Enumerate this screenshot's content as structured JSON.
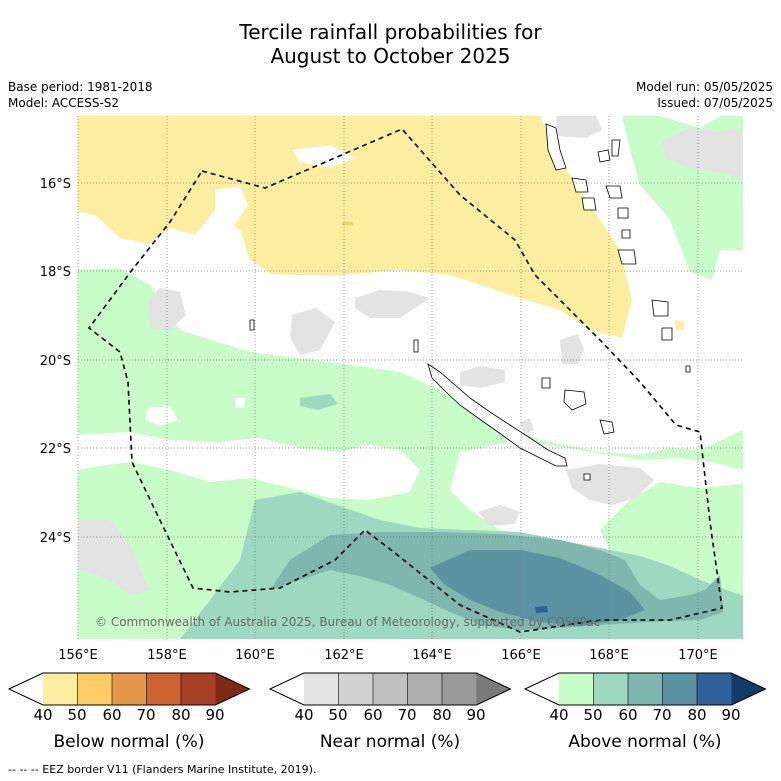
{
  "title_line1": "Tercile rainfall probabilities for",
  "title_line2": "August to October 2025",
  "meta_left": [
    "Base period: 1981-2018",
    "Model: ACCESS-S2"
  ],
  "meta_right": [
    "Model run: 05/05/2025",
    "Issued: 07/05/2025"
  ],
  "map": {
    "lon_ticks": [
      "156°E",
      "158°E",
      "160°E",
      "162°E",
      "164°E",
      "166°E",
      "168°E",
      "170°E"
    ],
    "lat_ticks": [
      "16°S",
      "18°S",
      "20°S",
      "22°S",
      "24°S"
    ],
    "copyright": "© Commonwealth of Australia 2025, Bureau of Meteorology, supported by COSPPac"
  },
  "legends": [
    {
      "title": "Below normal (%)",
      "ticks": [
        "40",
        "50",
        "60",
        "70",
        "80",
        "90"
      ],
      "colors": [
        "#ffffff",
        "#fdeda0",
        "#fdcc66",
        "#e5984a",
        "#cc6333",
        "#a84026",
        "#7f2a19"
      ]
    },
    {
      "title": "Near normal (%)",
      "ticks": [
        "40",
        "50",
        "60",
        "70",
        "80",
        "90"
      ],
      "colors": [
        "#ffffff",
        "#e3e3e3",
        "#d1d1d1",
        "#c0c0c0",
        "#adadad",
        "#9a9a9a",
        "#7a7a7a"
      ]
    },
    {
      "title": "Above normal (%)",
      "ticks": [
        "40",
        "50",
        "60",
        "70",
        "80",
        "90"
      ],
      "colors": [
        "#ffffff",
        "#c8fcc8",
        "#9fd8c0",
        "#7fb6ad",
        "#5c93a3",
        "#2f6098",
        "#123a6a"
      ]
    }
  ],
  "footnote": "--  --  -- EEZ border V11 (Flanders Marine Institute, 2019)."
}
